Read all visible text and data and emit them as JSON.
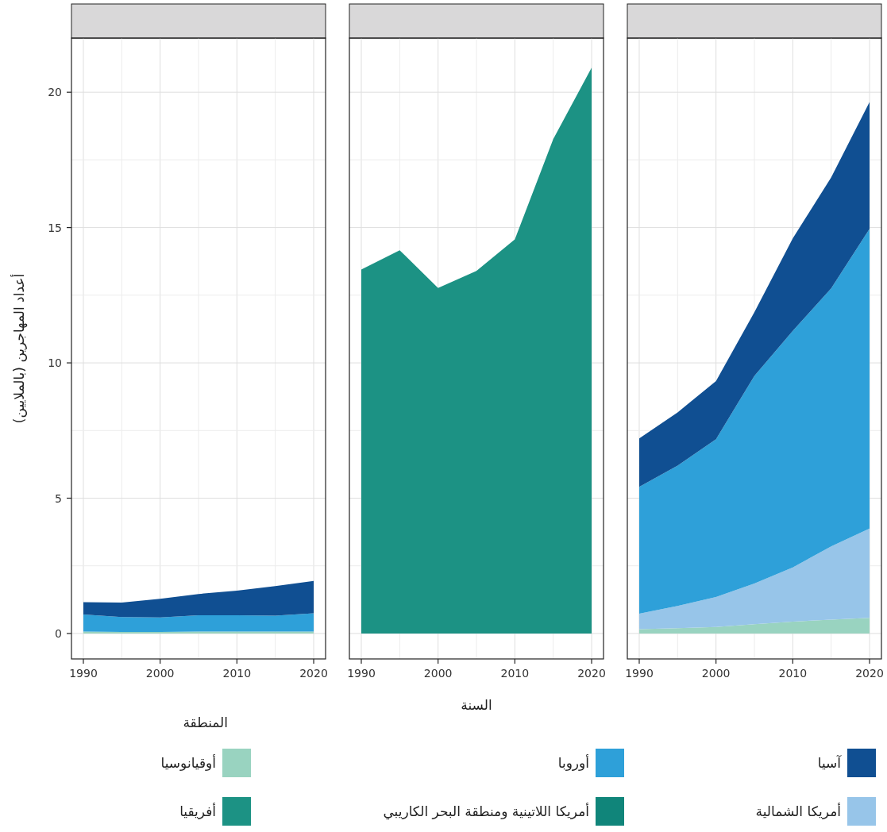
{
  "chart_data": [
    {
      "type": "area",
      "stacked": true,
      "ylabel": "أعداد المهاجرين (بالملايين)",
      "legend": "bottom",
      "legend_title": "المنطقة",
      "grid": true,
      "tick_labels": "xy",
      "xlim": [
        1988.45,
        2021.55
      ],
      "xticks": [
        1990,
        {
          "value": 1995,
          "label": null
        },
        2000,
        {
          "value": 2005,
          "label": null
        },
        2010,
        {
          "value": 2015,
          "label": null
        },
        2020
      ],
      "ylim": [
        -0.94,
        22
      ],
      "yticks": [
        0,
        {
          "value": 2.5,
          "label": null
        },
        5,
        {
          "value": 7.5,
          "label": null
        },
        10,
        {
          "value": 12.5,
          "label": null
        },
        15,
        {
          "value": 17.5,
          "label": null
        },
        20
      ],
      "x": [
        1990,
        1995,
        2000,
        2005,
        2010,
        2015,
        2020
      ],
      "series": [
        {
          "name": "أوقيانوسيا",
          "color": "#99d3c0",
          "values": [
            0.07,
            0.06,
            0.06,
            0.07,
            0.07,
            0.07,
            0.07
          ]
        },
        {
          "name": "أوروبا",
          "color": "#2ea0d9",
          "values": [
            0.63,
            0.55,
            0.53,
            0.6,
            0.6,
            0.59,
            0.68
          ]
        },
        {
          "name": "آسيا",
          "color": "#104f92",
          "values": [
            0.46,
            0.53,
            0.69,
            0.79,
            0.91,
            1.09,
            1.19
          ]
        }
      ]
    },
    {
      "type": "area",
      "stacked": true,
      "xlabel": "السنة",
      "grid": true,
      "tick_labels": "x",
      "xlim": [
        1988.45,
        2021.55
      ],
      "xticks": [
        1990,
        {
          "value": 1995,
          "label": null
        },
        2000,
        {
          "value": 2005,
          "label": null
        },
        2010,
        {
          "value": 2015,
          "label": null
        },
        2020
      ],
      "ylim": [
        -0.94,
        22
      ],
      "yticks": [
        0,
        {
          "value": 2.5,
          "label": null
        },
        5,
        {
          "value": 7.5,
          "label": null
        },
        10,
        {
          "value": 12.5,
          "label": null
        },
        15,
        {
          "value": 17.5,
          "label": null
        },
        20
      ],
      "x": [
        1990,
        1995,
        2000,
        2005,
        2010,
        2015,
        2020
      ],
      "series": [
        {
          "name": "أفريقيا",
          "color": "#1c9284",
          "values": [
            13.45,
            14.16,
            12.77,
            13.4,
            14.56,
            18.27,
            20.91
          ]
        },
        {
          "name": "أمريكا اللاتينية ومنطقة البحر الكاريبي",
          "color": "#10857a",
          "values": [
            null,
            null,
            null,
            null,
            null,
            null,
            null
          ]
        }
      ]
    },
    {
      "type": "area",
      "stacked": true,
      "grid": true,
      "tick_labels": "x",
      "xlim": [
        1988.45,
        2021.55
      ],
      "xticks": [
        1990,
        {
          "value": 1995,
          "label": null
        },
        2000,
        {
          "value": 2005,
          "label": null
        },
        2010,
        {
          "value": 2015,
          "label": null
        },
        2020
      ],
      "ylim": [
        -0.94,
        22
      ],
      "yticks": [
        0,
        {
          "value": 2.5,
          "label": null
        },
        5,
        {
          "value": 7.5,
          "label": null
        },
        10,
        {
          "value": 12.5,
          "label": null
        },
        15,
        {
          "value": 17.5,
          "label": null
        },
        20
      ],
      "x": [
        1990,
        1995,
        2000,
        2005,
        2010,
        2015,
        2020
      ],
      "series": [
        {
          "name": "أوقيانوسيا",
          "color": "#99d3c0",
          "values": [
            0.16,
            0.2,
            0.24,
            0.34,
            0.44,
            0.51,
            0.58
          ]
        },
        {
          "name": "أمريكا الشمالية",
          "color": "#97c5e9",
          "values": [
            0.57,
            0.82,
            1.11,
            1.51,
            2.0,
            2.71,
            3.3
          ]
        },
        {
          "name": "أوروبا",
          "color": "#2ea0d9",
          "values": [
            4.69,
            5.18,
            5.83,
            7.67,
            8.74,
            9.53,
            11.07
          ]
        },
        {
          "name": "آسيا",
          "color": "#104f92",
          "values": [
            1.79,
            1.97,
            2.15,
            2.35,
            3.42,
            4.1,
            4.69
          ]
        }
      ]
    }
  ]
}
